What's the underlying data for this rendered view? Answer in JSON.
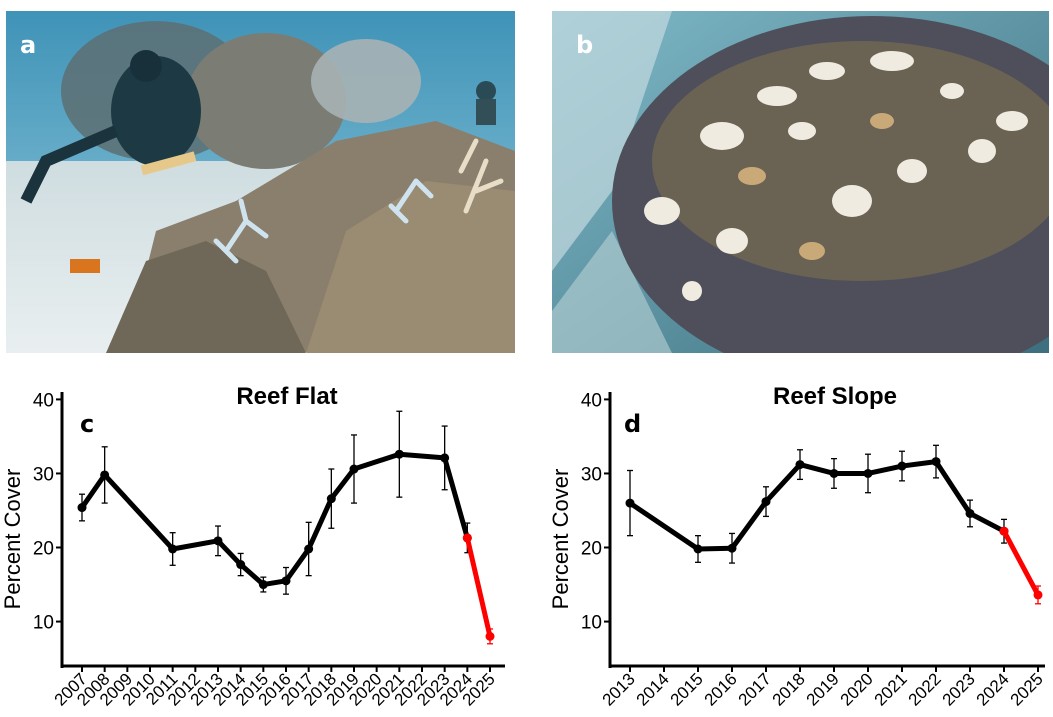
{
  "panels": {
    "a": {
      "letter": "a"
    },
    "b": {
      "letter": "b"
    }
  },
  "chart_data": [
    {
      "type": "line",
      "panel_letter": "c",
      "title": "Reef Flat",
      "xlabel": "",
      "ylabel": "Percent Cover",
      "ylim": [
        4,
        41
      ],
      "yticks": [
        10,
        20,
        30,
        40
      ],
      "x": [
        "2007",
        "2008",
        "2009",
        "2010",
        "2011",
        "2012",
        "2013",
        "2014",
        "2015",
        "2016",
        "2017",
        "2018",
        "2019",
        "2020",
        "2021",
        "2022",
        "2023",
        "2024",
        "2025"
      ],
      "series": [
        {
          "color": "#000000",
          "points": [
            {
              "x": "2007",
              "y": 25.4,
              "err": 1.8
            },
            {
              "x": "2008",
              "y": 29.8,
              "err": 3.8
            },
            {
              "x": "2011",
              "y": 19.8,
              "err": 2.2
            },
            {
              "x": "2013",
              "y": 20.9,
              "err": 2.0
            },
            {
              "x": "2014",
              "y": 17.7,
              "err": 1.5
            },
            {
              "x": "2015",
              "y": 15.0,
              "err": 1.0
            },
            {
              "x": "2016",
              "y": 15.5,
              "err": 1.8
            },
            {
              "x": "2017",
              "y": 19.8,
              "err": 3.6
            },
            {
              "x": "2018",
              "y": 26.6,
              "err": 4.0
            },
            {
              "x": "2019",
              "y": 30.6,
              "err": 4.6
            },
            {
              "x": "2021",
              "y": 32.6,
              "err": 5.8
            },
            {
              "x": "2023",
              "y": 32.1,
              "err": 4.3
            },
            {
              "x": "2024",
              "y": 21.3,
              "err": 2.0
            }
          ]
        },
        {
          "color": "#ff0000",
          "points": [
            {
              "x": "2024",
              "y": 21.3,
              "err": 0
            },
            {
              "x": "2025",
              "y": 8.0,
              "err": 1.0
            }
          ]
        }
      ],
      "grid": false
    },
    {
      "type": "line",
      "panel_letter": "d",
      "title": "Reef Slope",
      "xlabel": "",
      "ylabel": "Percent Cover",
      "ylim": [
        4,
        41
      ],
      "yticks": [
        10,
        20,
        30,
        40
      ],
      "x": [
        "2013",
        "2014",
        "2015",
        "2016",
        "2017",
        "2018",
        "2019",
        "2020",
        "2021",
        "2022",
        "2023",
        "2024",
        "2025"
      ],
      "series": [
        {
          "color": "#000000",
          "points": [
            {
              "x": "2013",
              "y": 26.0,
              "err": 4.4
            },
            {
              "x": "2015",
              "y": 19.8,
              "err": 1.8
            },
            {
              "x": "2016",
              "y": 19.9,
              "err": 2.0
            },
            {
              "x": "2017",
              "y": 26.2,
              "err": 2.0
            },
            {
              "x": "2018",
              "y": 31.2,
              "err": 2.0
            },
            {
              "x": "2019",
              "y": 30.0,
              "err": 2.0
            },
            {
              "x": "2020",
              "y": 30.0,
              "err": 2.6
            },
            {
              "x": "2021",
              "y": 31.0,
              "err": 2.0
            },
            {
              "x": "2022",
              "y": 31.6,
              "err": 2.2
            },
            {
              "x": "2023",
              "y": 24.6,
              "err": 1.8
            },
            {
              "x": "2024",
              "y": 22.2,
              "err": 1.6
            }
          ]
        },
        {
          "color": "#ff0000",
          "points": [
            {
              "x": "2024",
              "y": 22.2,
              "err": 0
            },
            {
              "x": "2025",
              "y": 13.6,
              "err": 1.2
            }
          ]
        }
      ],
      "grid": false
    }
  ]
}
